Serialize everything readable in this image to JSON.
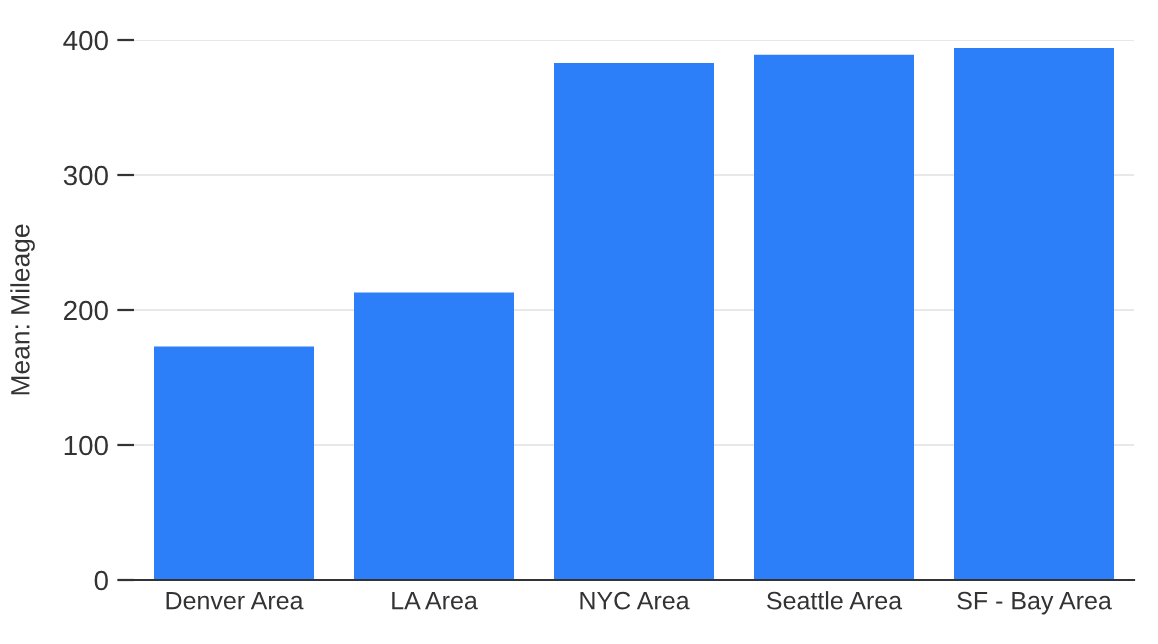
{
  "chart_data": {
    "type": "bar",
    "ylabel": "Mean: Mileage",
    "categories": [
      "Denver Area",
      "LA Area",
      "NYC Area",
      "Seattle Area",
      "SF - Bay Area"
    ],
    "values": [
      173,
      213,
      383,
      389,
      394
    ],
    "color": "#2d7ff9",
    "ylim": [
      0,
      400
    ],
    "yticks": [
      0,
      100,
      200,
      300,
      400
    ],
    "grid": "y"
  }
}
